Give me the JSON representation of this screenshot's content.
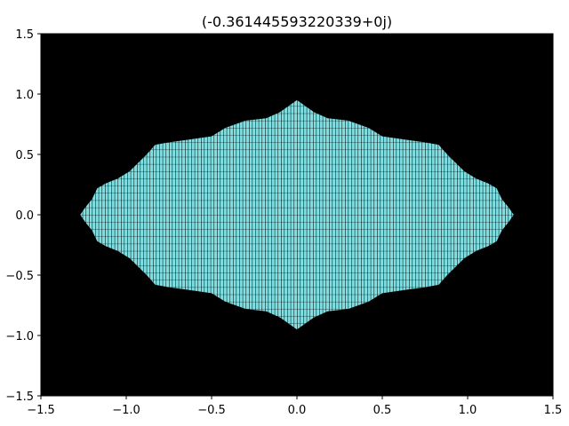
{
  "chart_data": {
    "type": "heatmap",
    "title": "(-0.361445593220339+0j)",
    "xlabel": "",
    "ylabel": "",
    "xlim": [
      -1.5,
      1.5
    ],
    "ylim": [
      -1.5,
      1.5
    ],
    "x_ticks": [
      {
        "value": -1.5,
        "label": "−1.5"
      },
      {
        "value": -1.0,
        "label": "−1.0"
      },
      {
        "value": -0.5,
        "label": "−0.5"
      },
      {
        "value": 0.0,
        "label": "0.0"
      },
      {
        "value": 0.5,
        "label": "0.5"
      },
      {
        "value": 1.0,
        "label": "1.0"
      },
      {
        "value": 1.5,
        "label": "1.5"
      }
    ],
    "y_ticks": [
      {
        "value": 1.5,
        "label": "1.5"
      },
      {
        "value": 1.0,
        "label": "1.0"
      },
      {
        "value": 0.5,
        "label": "0.5"
      },
      {
        "value": 0.0,
        "label": "0.0"
      },
      {
        "value": -0.5,
        "label": "−0.5"
      },
      {
        "value": -1.0,
        "label": "−1.0"
      },
      {
        "value": -1.5,
        "label": "−1.5"
      }
    ],
    "grid": false,
    "colors": {
      "background": "#000000",
      "set_fill": "#7fe0e3",
      "cell_edge": "#000000"
    },
    "set_boundary_upper": [
      [
        -1.27,
        0.0
      ],
      [
        -1.24,
        0.06
      ],
      [
        -1.2,
        0.13
      ],
      [
        -1.17,
        0.22
      ],
      [
        -1.12,
        0.26
      ],
      [
        -1.05,
        0.3
      ],
      [
        -0.98,
        0.36
      ],
      [
        -0.93,
        0.43
      ],
      [
        -0.88,
        0.5
      ],
      [
        -0.83,
        0.58
      ],
      [
        -0.75,
        0.6
      ],
      [
        -0.65,
        0.62
      ],
      [
        -0.5,
        0.65
      ],
      [
        -0.42,
        0.72
      ],
      [
        -0.3,
        0.78
      ],
      [
        -0.18,
        0.8
      ],
      [
        -0.1,
        0.85
      ],
      [
        -0.04,
        0.91
      ],
      [
        0.0,
        0.95
      ],
      [
        0.04,
        0.91
      ],
      [
        0.1,
        0.85
      ],
      [
        0.18,
        0.8
      ],
      [
        0.3,
        0.78
      ],
      [
        0.42,
        0.72
      ],
      [
        0.5,
        0.65
      ],
      [
        0.65,
        0.62
      ],
      [
        0.75,
        0.6
      ],
      [
        0.83,
        0.58
      ],
      [
        0.88,
        0.5
      ],
      [
        0.93,
        0.43
      ],
      [
        0.98,
        0.36
      ],
      [
        1.05,
        0.3
      ],
      [
        1.12,
        0.26
      ],
      [
        1.17,
        0.22
      ],
      [
        1.2,
        0.13
      ],
      [
        1.24,
        0.06
      ],
      [
        1.27,
        0.0
      ]
    ]
  }
}
